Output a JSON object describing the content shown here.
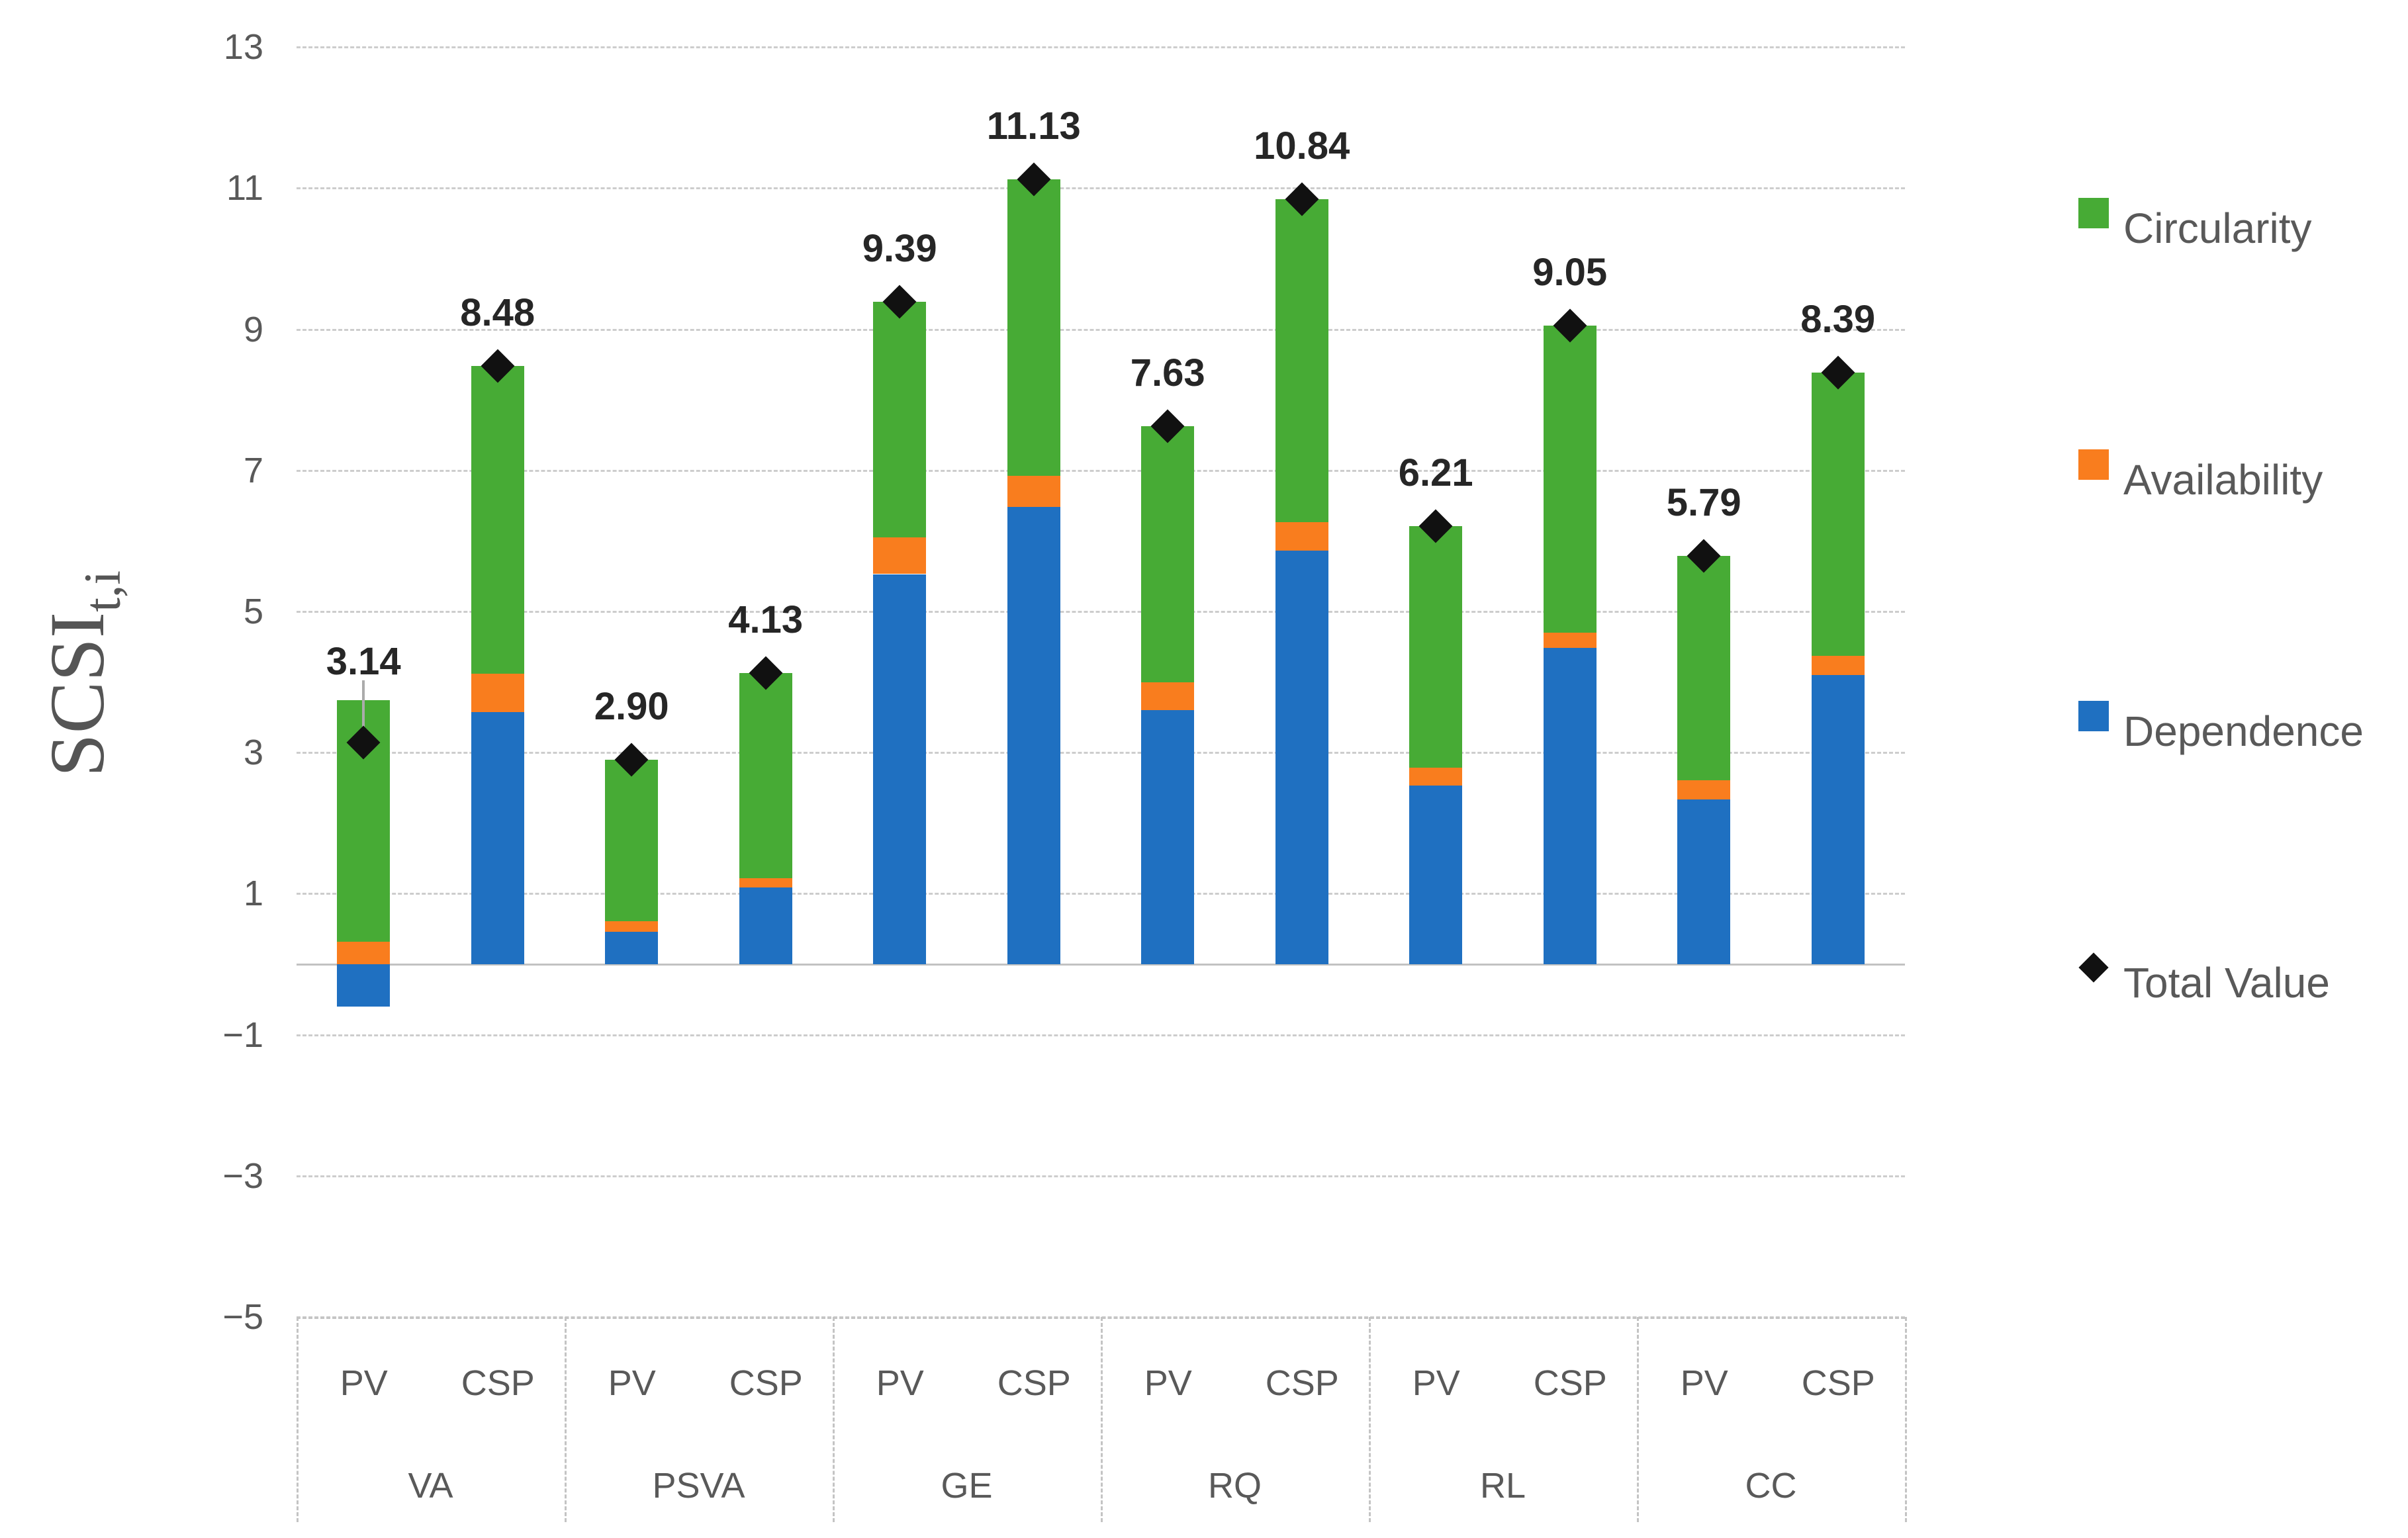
{
  "chart_data": {
    "type": "bar",
    "subtype": "stacked-column-with-total-markers",
    "title": "",
    "xlabel": "",
    "ylabel_main": "SCSI",
    "ylabel_sub": "t,i",
    "ylim": [
      -5,
      13
    ],
    "grid": "dashed-horizontal",
    "legend_position": "right",
    "groups": [
      "VA",
      "PSVA",
      "GE",
      "RQ",
      "RL",
      "CC"
    ],
    "subcategories": [
      "PV",
      "CSP"
    ],
    "yticks": [
      {
        "v": 13,
        "label": "13"
      },
      {
        "v": 11,
        "label": "11"
      },
      {
        "v": 9,
        "label": "9"
      },
      {
        "v": 7,
        "label": "7"
      },
      {
        "v": 5,
        "label": "5"
      },
      {
        "v": 3,
        "label": "3"
      },
      {
        "v": 1,
        "label": "1"
      },
      {
        "v": -1,
        "label": "−1"
      },
      {
        "v": -3,
        "label": "−3"
      },
      {
        "v": -5,
        "label": "−5"
      }
    ],
    "series_order": [
      "dependence",
      "availability",
      "circularity"
    ],
    "bars": [
      {
        "group": "VA",
        "tech": "PV",
        "dependence": -0.6,
        "availability": 0.32,
        "circularity": 3.42,
        "total": 3.14,
        "total_label": "3.14",
        "leader_line": true
      },
      {
        "group": "VA",
        "tech": "CSP",
        "dependence": 3.57,
        "availability": 0.55,
        "circularity": 4.36,
        "total": 8.48,
        "total_label": "8.48",
        "leader_line": false
      },
      {
        "group": "PSVA",
        "tech": "PV",
        "dependence": 0.46,
        "availability": 0.15,
        "circularity": 2.29,
        "total": 2.9,
        "total_label": "2.90",
        "leader_line": false
      },
      {
        "group": "PSVA",
        "tech": "CSP",
        "dependence": 1.09,
        "availability": 0.13,
        "circularity": 2.91,
        "total": 4.13,
        "total_label": "4.13",
        "leader_line": false
      },
      {
        "group": "GE",
        "tech": "PV",
        "dependence": 5.53,
        "availability": 0.52,
        "circularity": 3.34,
        "total": 9.39,
        "total_label": "9.39",
        "leader_line": false
      },
      {
        "group": "GE",
        "tech": "CSP",
        "dependence": 6.48,
        "availability": 0.44,
        "circularity": 4.21,
        "total": 11.13,
        "total_label": "11.13",
        "leader_line": false
      },
      {
        "group": "RQ",
        "tech": "PV",
        "dependence": 3.6,
        "availability": 0.4,
        "circularity": 3.63,
        "total": 7.63,
        "total_label": "7.63",
        "leader_line": false
      },
      {
        "group": "RQ",
        "tech": "CSP",
        "dependence": 5.86,
        "availability": 0.41,
        "circularity": 4.57,
        "total": 10.84,
        "total_label": "10.84",
        "leader_line": false
      },
      {
        "group": "RL",
        "tech": "PV",
        "dependence": 2.53,
        "availability": 0.26,
        "circularity": 3.42,
        "total": 6.21,
        "total_label": "6.21",
        "leader_line": false
      },
      {
        "group": "RL",
        "tech": "CSP",
        "dependence": 4.48,
        "availability": 0.22,
        "circularity": 4.35,
        "total": 9.05,
        "total_label": "9.05",
        "leader_line": false
      },
      {
        "group": "CC",
        "tech": "PV",
        "dependence": 2.34,
        "availability": 0.27,
        "circularity": 3.18,
        "total": 5.79,
        "total_label": "5.79",
        "leader_line": false
      },
      {
        "group": "CC",
        "tech": "CSP",
        "dependence": 4.1,
        "availability": 0.27,
        "circularity": 4.02,
        "total": 8.39,
        "total_label": "8.39",
        "leader_line": false
      }
    ],
    "legend": {
      "items": [
        {
          "label": "Circularity",
          "marker": "square",
          "color_key": "circularity"
        },
        {
          "label": "Availability",
          "marker": "square",
          "color_key": "availability"
        },
        {
          "label": "Dependence",
          "marker": "square",
          "color_key": "dependence"
        },
        {
          "label": "Total Value",
          "marker": "diamond",
          "color_key": "total"
        }
      ]
    },
    "colors": {
      "circularity": "#47ab35",
      "availability": "#f97d1e",
      "dependence": "#1f70c1",
      "total": "#111111",
      "gridline": "#cdcdcd",
      "axis_text": "#595959",
      "data_label": "#262626",
      "leader_line": "#ababab"
    }
  }
}
